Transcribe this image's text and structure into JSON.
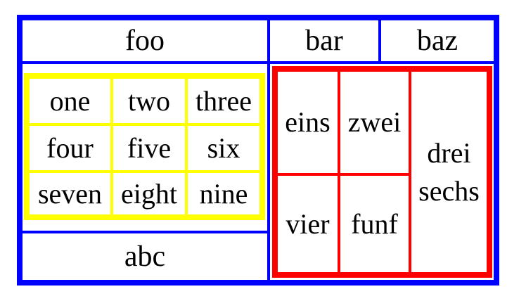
{
  "colors": {
    "outer": "#0000ff",
    "left_inner": "#ffff00",
    "right_inner": "#ff0000"
  },
  "header": {
    "foo": "foo",
    "bar": "bar",
    "baz": "baz"
  },
  "footer": {
    "abc": "abc"
  },
  "left_grid": {
    "rows": [
      [
        "one",
        "two",
        "three"
      ],
      [
        "four",
        "five",
        "six"
      ],
      [
        "seven",
        "eight",
        "nine"
      ]
    ]
  },
  "right_grid": {
    "eins": "eins",
    "zwei": "zwei",
    "drei": "drei",
    "vier": "vier",
    "funf": "funf",
    "sechs": "sechs"
  }
}
